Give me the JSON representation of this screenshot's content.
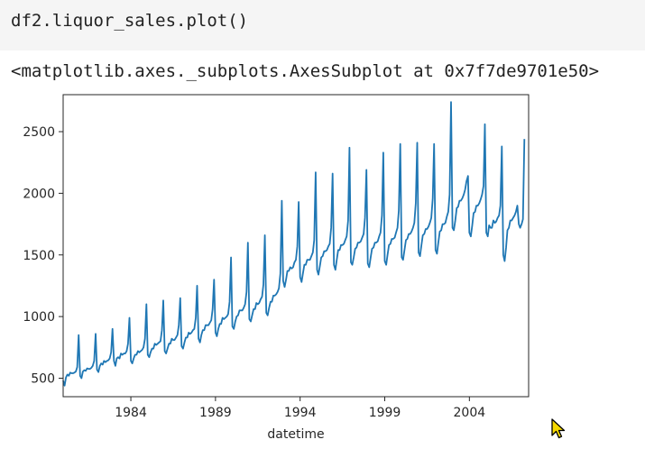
{
  "cell": {
    "code": "df2.liquor_sales.plot()",
    "output": "<matplotlib.axes._subplots.AxesSubplot at 0x7f7de9701e50>"
  },
  "chart_data": {
    "type": "line",
    "title": "",
    "xlabel": "datetime",
    "ylabel": "",
    "x_ticks": [
      "1984",
      "1989",
      "1994",
      "1999",
      "2004"
    ],
    "y_ticks": [
      "500",
      "1000",
      "1500",
      "2000",
      "2500"
    ],
    "xlim": [
      1980.0,
      2007.5
    ],
    "ylim": [
      350,
      2800
    ],
    "grid": false,
    "series": [
      {
        "color": "#1f77b4",
        "x_start": 1980.0,
        "x_step": 0.0833333,
        "values": [
          480,
          440,
          505,
          530,
          520,
          545,
          540,
          540,
          545,
          555,
          590,
          850,
          520,
          500,
          555,
          565,
          560,
          580,
          575,
          575,
          585,
          600,
          640,
          860,
          570,
          550,
          600,
          620,
          610,
          640,
          630,
          640,
          645,
          660,
          710,
          900,
          640,
          600,
          660,
          670,
          660,
          700,
          690,
          700,
          700,
          720,
          780,
          990,
          640,
          620,
          660,
          690,
          690,
          720,
          710,
          720,
          730,
          750,
          820,
          1100,
          690,
          670,
          710,
          740,
          740,
          780,
          770,
          780,
          790,
          800,
          890,
          1130,
          720,
          700,
          740,
          780,
          780,
          820,
          810,
          810,
          830,
          850,
          930,
          1150,
          760,
          740,
          790,
          830,
          830,
          870,
          860,
          870,
          890,
          900,
          990,
          1250,
          820,
          790,
          850,
          890,
          890,
          930,
          930,
          930,
          950,
          970,
          1060,
          1300,
          870,
          840,
          900,
          940,
          940,
          990,
          980,
          990,
          1000,
          1020,
          1120,
          1480,
          920,
          900,
          960,
          1000,
          1010,
          1050,
          1050,
          1050,
          1070,
          1100,
          1200,
          1600,
          980,
          960,
          1010,
          1060,
          1060,
          1110,
          1100,
          1110,
          1140,
          1160,
          1260,
          1660,
          1030,
          1010,
          1070,
          1120,
          1120,
          1170,
          1170,
          1180,
          1200,
          1230,
          1350,
          1940,
          1290,
          1240,
          1300,
          1370,
          1370,
          1400,
          1390,
          1400,
          1440,
          1460,
          1570,
          1930,
          1320,
          1280,
          1350,
          1420,
          1420,
          1460,
          1460,
          1460,
          1490,
          1520,
          1620,
          2170,
          1380,
          1340,
          1410,
          1480,
          1490,
          1530,
          1530,
          1540,
          1570,
          1590,
          1720,
          2160,
          1420,
          1380,
          1460,
          1540,
          1540,
          1580,
          1580,
          1590,
          1620,
          1650,
          1780,
          2370,
          1440,
          1420,
          1480,
          1550,
          1560,
          1600,
          1600,
          1610,
          1640,
          1670,
          1800,
          2190,
          1430,
          1400,
          1480,
          1550,
          1560,
          1600,
          1600,
          1610,
          1650,
          1680,
          1820,
          2330,
          1450,
          1420,
          1500,
          1580,
          1590,
          1630,
          1630,
          1640,
          1680,
          1720,
          1860,
          2400,
          1480,
          1460,
          1540,
          1620,
          1630,
          1670,
          1670,
          1690,
          1720,
          1760,
          1920,
          2410,
          1520,
          1490,
          1580,
          1660,
          1670,
          1710,
          1710,
          1730,
          1760,
          1800,
          1960,
          2400,
          1540,
          1510,
          1600,
          1690,
          1700,
          1750,
          1750,
          1760,
          1810,
          1850,
          1990,
          2740,
          1720,
          1700,
          1780,
          1880,
          1890,
          1940,
          1940,
          1960,
          1990,
          2030,
          2100,
          2140,
          1680,
          1650,
          1740,
          1840,
          1850,
          1900,
          1900,
          1920,
          1950,
          1990,
          2060,
          2560,
          1680,
          1650,
          1740,
          1720,
          1720,
          1780,
          1760,
          1770,
          1800,
          1820,
          1900,
          2380,
          1500,
          1450,
          1560,
          1700,
          1720,
          1780,
          1780,
          1800,
          1820,
          1850,
          1900,
          1750,
          1720,
          1750,
          1790,
          2440
        ]
      }
    ]
  }
}
